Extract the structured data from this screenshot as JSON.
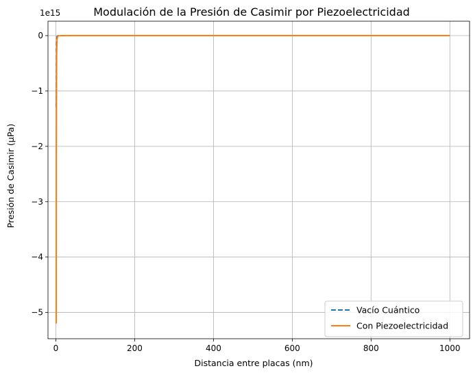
{
  "chart_data": {
    "type": "line",
    "title": "Modulación de la Presión de Casimir por Piezoelectricidad",
    "xlabel": "Distancia entre placas (nm)",
    "ylabel": "Presión de Casimir (µPa)",
    "y_offset_label": "1e15",
    "y_scale": 1000000000000000.0,
    "xlim": [
      -20,
      1050
    ],
    "ylim": [
      -5.475,
      0.26
    ],
    "x_ticks": [
      0,
      200,
      400,
      600,
      800,
      1000
    ],
    "x_tick_labels": [
      "0",
      "200",
      "400",
      "600",
      "800",
      "1000"
    ],
    "y_ticks": [
      0,
      -1,
      -2,
      -3,
      -4,
      -5
    ],
    "y_tick_labels": [
      "0",
      "−1",
      "−2",
      "−3",
      "−4",
      "−5"
    ],
    "grid": true,
    "legend_position": "lower-right",
    "series": [
      {
        "name": "Vacío Cuántico",
        "color": "#1f77b4",
        "style": "dashed",
        "x": [
          1,
          1.5,
          2,
          3,
          5,
          10,
          50,
          100,
          500,
          1000
        ],
        "y": [
          -1.3,
          -0.26,
          -0.08,
          -0.016,
          -0.002,
          -0.0001,
          0,
          0,
          0,
          0
        ]
      },
      {
        "name": "Con Piezoelectricidad",
        "color": "#ff7f0e",
        "style": "solid",
        "x": [
          1,
          1.2,
          1.5,
          2,
          3,
          5,
          10,
          50,
          100,
          500,
          1000
        ],
        "y": [
          -5.2,
          -2.5,
          -1.03,
          -0.33,
          -0.064,
          -0.008,
          -0.0005,
          0,
          0,
          0,
          0
        ]
      }
    ]
  }
}
